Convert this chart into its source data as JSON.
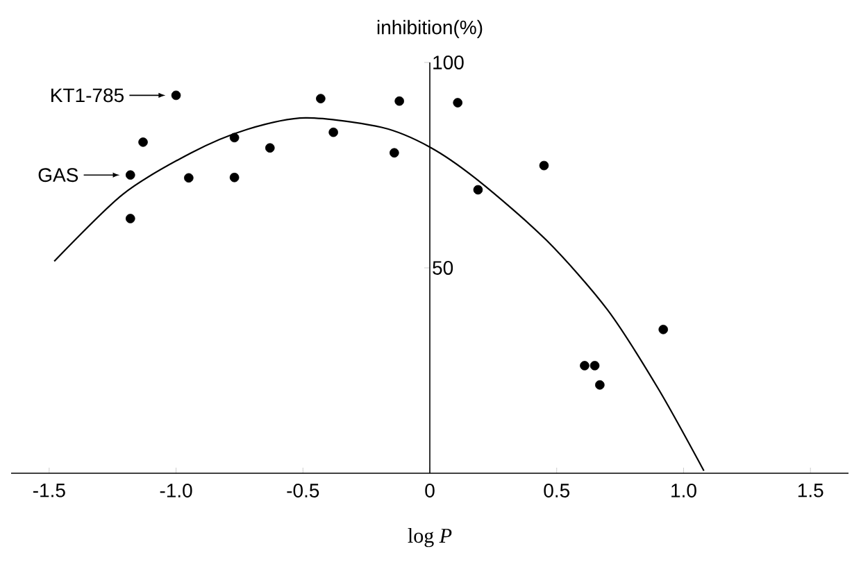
{
  "chart_data": {
    "type": "scatter",
    "xlabel": "log *P*",
    "ylabel": "inhibition(%)",
    "xlim": [
      -1.65,
      1.65
    ],
    "ylim": [
      0,
      100
    ],
    "xticks": [
      {
        "value": -1.5,
        "label": "-1.5"
      },
      {
        "value": -1.0,
        "label": "-1.0"
      },
      {
        "value": -0.5,
        "label": "-0.5"
      },
      {
        "value": 0,
        "label": "0"
      },
      {
        "value": 0.5,
        "label": "0.5"
      },
      {
        "value": 1.0,
        "label": "1.0"
      },
      {
        "value": 1.5,
        "label": "1.5"
      }
    ],
    "yticks": [
      50,
      100
    ],
    "marker": "circle",
    "grid": false,
    "annotations": [
      {
        "text": "KT1-785",
        "x": -1.0,
        "y": 92
      },
      {
        "text": "GAS",
        "x": -1.18,
        "y": 72.6
      }
    ],
    "series": [
      {
        "color": "#000000",
        "x": [
          -1.0,
          -1.13,
          -1.18,
          -1.18,
          -0.95,
          -0.77,
          -0.77,
          -0.63,
          -0.43,
          -0.38,
          -0.14,
          -0.12,
          0.11,
          0.19,
          0.45,
          0.92,
          0.61,
          0.65,
          0.67
        ],
        "values": [
          92,
          80.6,
          72.6,
          62,
          71.9,
          81.7,
          72,
          79.2,
          91.2,
          83,
          78,
          90.6,
          90.2,
          69,
          74.9,
          35,
          26.2,
          26.2,
          21.5
        ]
      },
      {
        "type": "line",
        "color": "#000000",
        "marker": "none",
        "x": [
          -1.48,
          -1.21,
          -0.94,
          -0.72,
          -0.49,
          -0.19,
          0,
          0.19,
          0.46,
          0.7,
          0.9,
          1.08
        ],
        "values": [
          51.6,
          67.9,
          78,
          83.7,
          86.5,
          84.2,
          79.4,
          71.3,
          56.7,
          39.8,
          20.6,
          0.6
        ]
      }
    ]
  }
}
